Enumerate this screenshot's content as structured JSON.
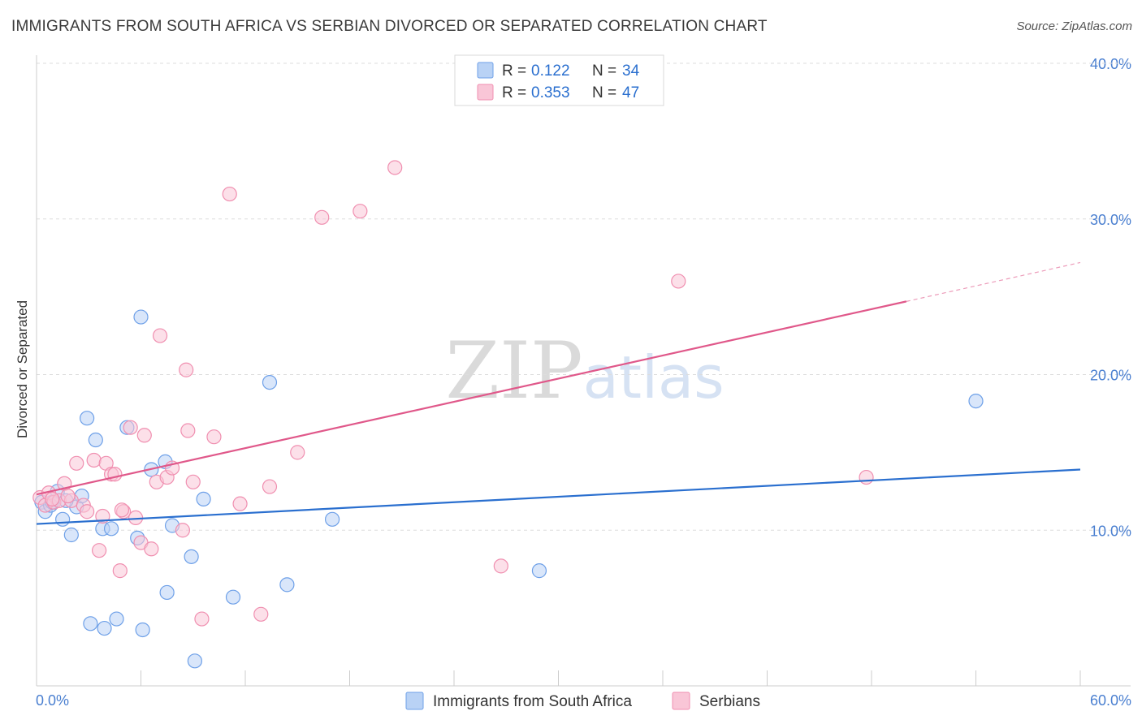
{
  "chart_data": {
    "type": "scatter",
    "title": "IMMIGRANTS FROM SOUTH AFRICA VS SERBIAN DIVORCED OR SEPARATED CORRELATION CHART",
    "source": "Source: ZipAtlas.com",
    "ylabel": "Divorced or Separated",
    "xlabel": "",
    "xlim": [
      0,
      60
    ],
    "ylim": [
      0,
      40
    ],
    "x_tick_labels": [
      "0.0%",
      "60.0%"
    ],
    "y_tick_labels": [
      "10.0%",
      "20.0%",
      "30.0%",
      "40.0%"
    ],
    "grid": true,
    "legend_position": "top-center",
    "watermark": "ZIPatlas",
    "series": [
      {
        "name": "Immigrants from South Africa",
        "color": "#6ea0e8",
        "fill": "#b9d2f5",
        "line_color": "#2a6fcf",
        "r": "0.122",
        "n": "34",
        "trend": {
          "x": [
            0,
            60
          ],
          "y": [
            10.4,
            13.9
          ]
        },
        "points": [
          [
            0.3,
            11.8
          ],
          [
            0.5,
            11.2
          ],
          [
            0.8,
            11.6
          ],
          [
            1.2,
            12.5
          ],
          [
            1.5,
            10.7
          ],
          [
            2.0,
            9.7
          ],
          [
            2.3,
            11.5
          ],
          [
            2.6,
            12.2
          ],
          [
            2.9,
            17.2
          ],
          [
            3.4,
            15.8
          ],
          [
            3.8,
            10.1
          ],
          [
            4.3,
            10.1
          ],
          [
            5.2,
            16.6
          ],
          [
            5.8,
            9.5
          ],
          [
            6.0,
            23.7
          ],
          [
            6.6,
            13.9
          ],
          [
            7.4,
            14.4
          ],
          [
            7.8,
            10.3
          ],
          [
            8.9,
            8.3
          ],
          [
            9.6,
            12.0
          ],
          [
            11.3,
            5.7
          ],
          [
            13.4,
            19.5
          ],
          [
            14.4,
            6.5
          ],
          [
            17.0,
            10.7
          ],
          [
            28.9,
            7.4
          ],
          [
            54.0,
            18.3
          ],
          [
            3.1,
            4.0
          ],
          [
            3.9,
            3.7
          ],
          [
            4.6,
            4.3
          ],
          [
            6.1,
            3.6
          ],
          [
            7.5,
            6.0
          ],
          [
            9.1,
            1.6
          ],
          [
            0.9,
            11.8
          ],
          [
            1.7,
            11.9
          ]
        ]
      },
      {
        "name": "Serbians",
        "color": "#f08fb0",
        "fill": "#f9c6d7",
        "line_color": "#e0588a",
        "r": "0.353",
        "n": "47",
        "trend": {
          "x": [
            0,
            50
          ],
          "y": [
            12.3,
            24.7
          ]
        },
        "trend_dashed": {
          "x": [
            50,
            60
          ],
          "y": [
            24.7,
            27.2
          ]
        },
        "points": [
          [
            0.2,
            12.1
          ],
          [
            0.5,
            11.6
          ],
          [
            0.7,
            12.4
          ],
          [
            1.0,
            11.8
          ],
          [
            1.3,
            11.9
          ],
          [
            1.6,
            13.0
          ],
          [
            2.0,
            11.9
          ],
          [
            2.3,
            14.3
          ],
          [
            2.7,
            11.6
          ],
          [
            2.9,
            11.2
          ],
          [
            3.3,
            14.5
          ],
          [
            3.6,
            8.7
          ],
          [
            3.8,
            10.9
          ],
          [
            4.0,
            14.3
          ],
          [
            4.3,
            13.6
          ],
          [
            4.5,
            13.6
          ],
          [
            4.8,
            7.4
          ],
          [
            5.0,
            11.2
          ],
          [
            5.4,
            16.6
          ],
          [
            5.7,
            10.8
          ],
          [
            6.0,
            9.2
          ],
          [
            6.2,
            16.1
          ],
          [
            6.6,
            8.8
          ],
          [
            6.9,
            13.1
          ],
          [
            7.1,
            22.5
          ],
          [
            7.5,
            13.4
          ],
          [
            7.8,
            14.0
          ],
          [
            8.4,
            10.0
          ],
          [
            8.6,
            20.3
          ],
          [
            8.7,
            16.4
          ],
          [
            9.0,
            13.1
          ],
          [
            9.5,
            4.3
          ],
          [
            10.2,
            16.0
          ],
          [
            11.1,
            31.6
          ],
          [
            11.7,
            11.7
          ],
          [
            12.9,
            4.6
          ],
          [
            13.4,
            12.8
          ],
          [
            15.0,
            15.0
          ],
          [
            16.4,
            30.1
          ],
          [
            18.6,
            30.5
          ],
          [
            20.6,
            33.3
          ],
          [
            26.7,
            7.7
          ],
          [
            36.9,
            26.0
          ],
          [
            47.7,
            13.4
          ],
          [
            0.9,
            12.0
          ],
          [
            1.8,
            12.2
          ],
          [
            4.9,
            11.3
          ]
        ]
      }
    ]
  }
}
